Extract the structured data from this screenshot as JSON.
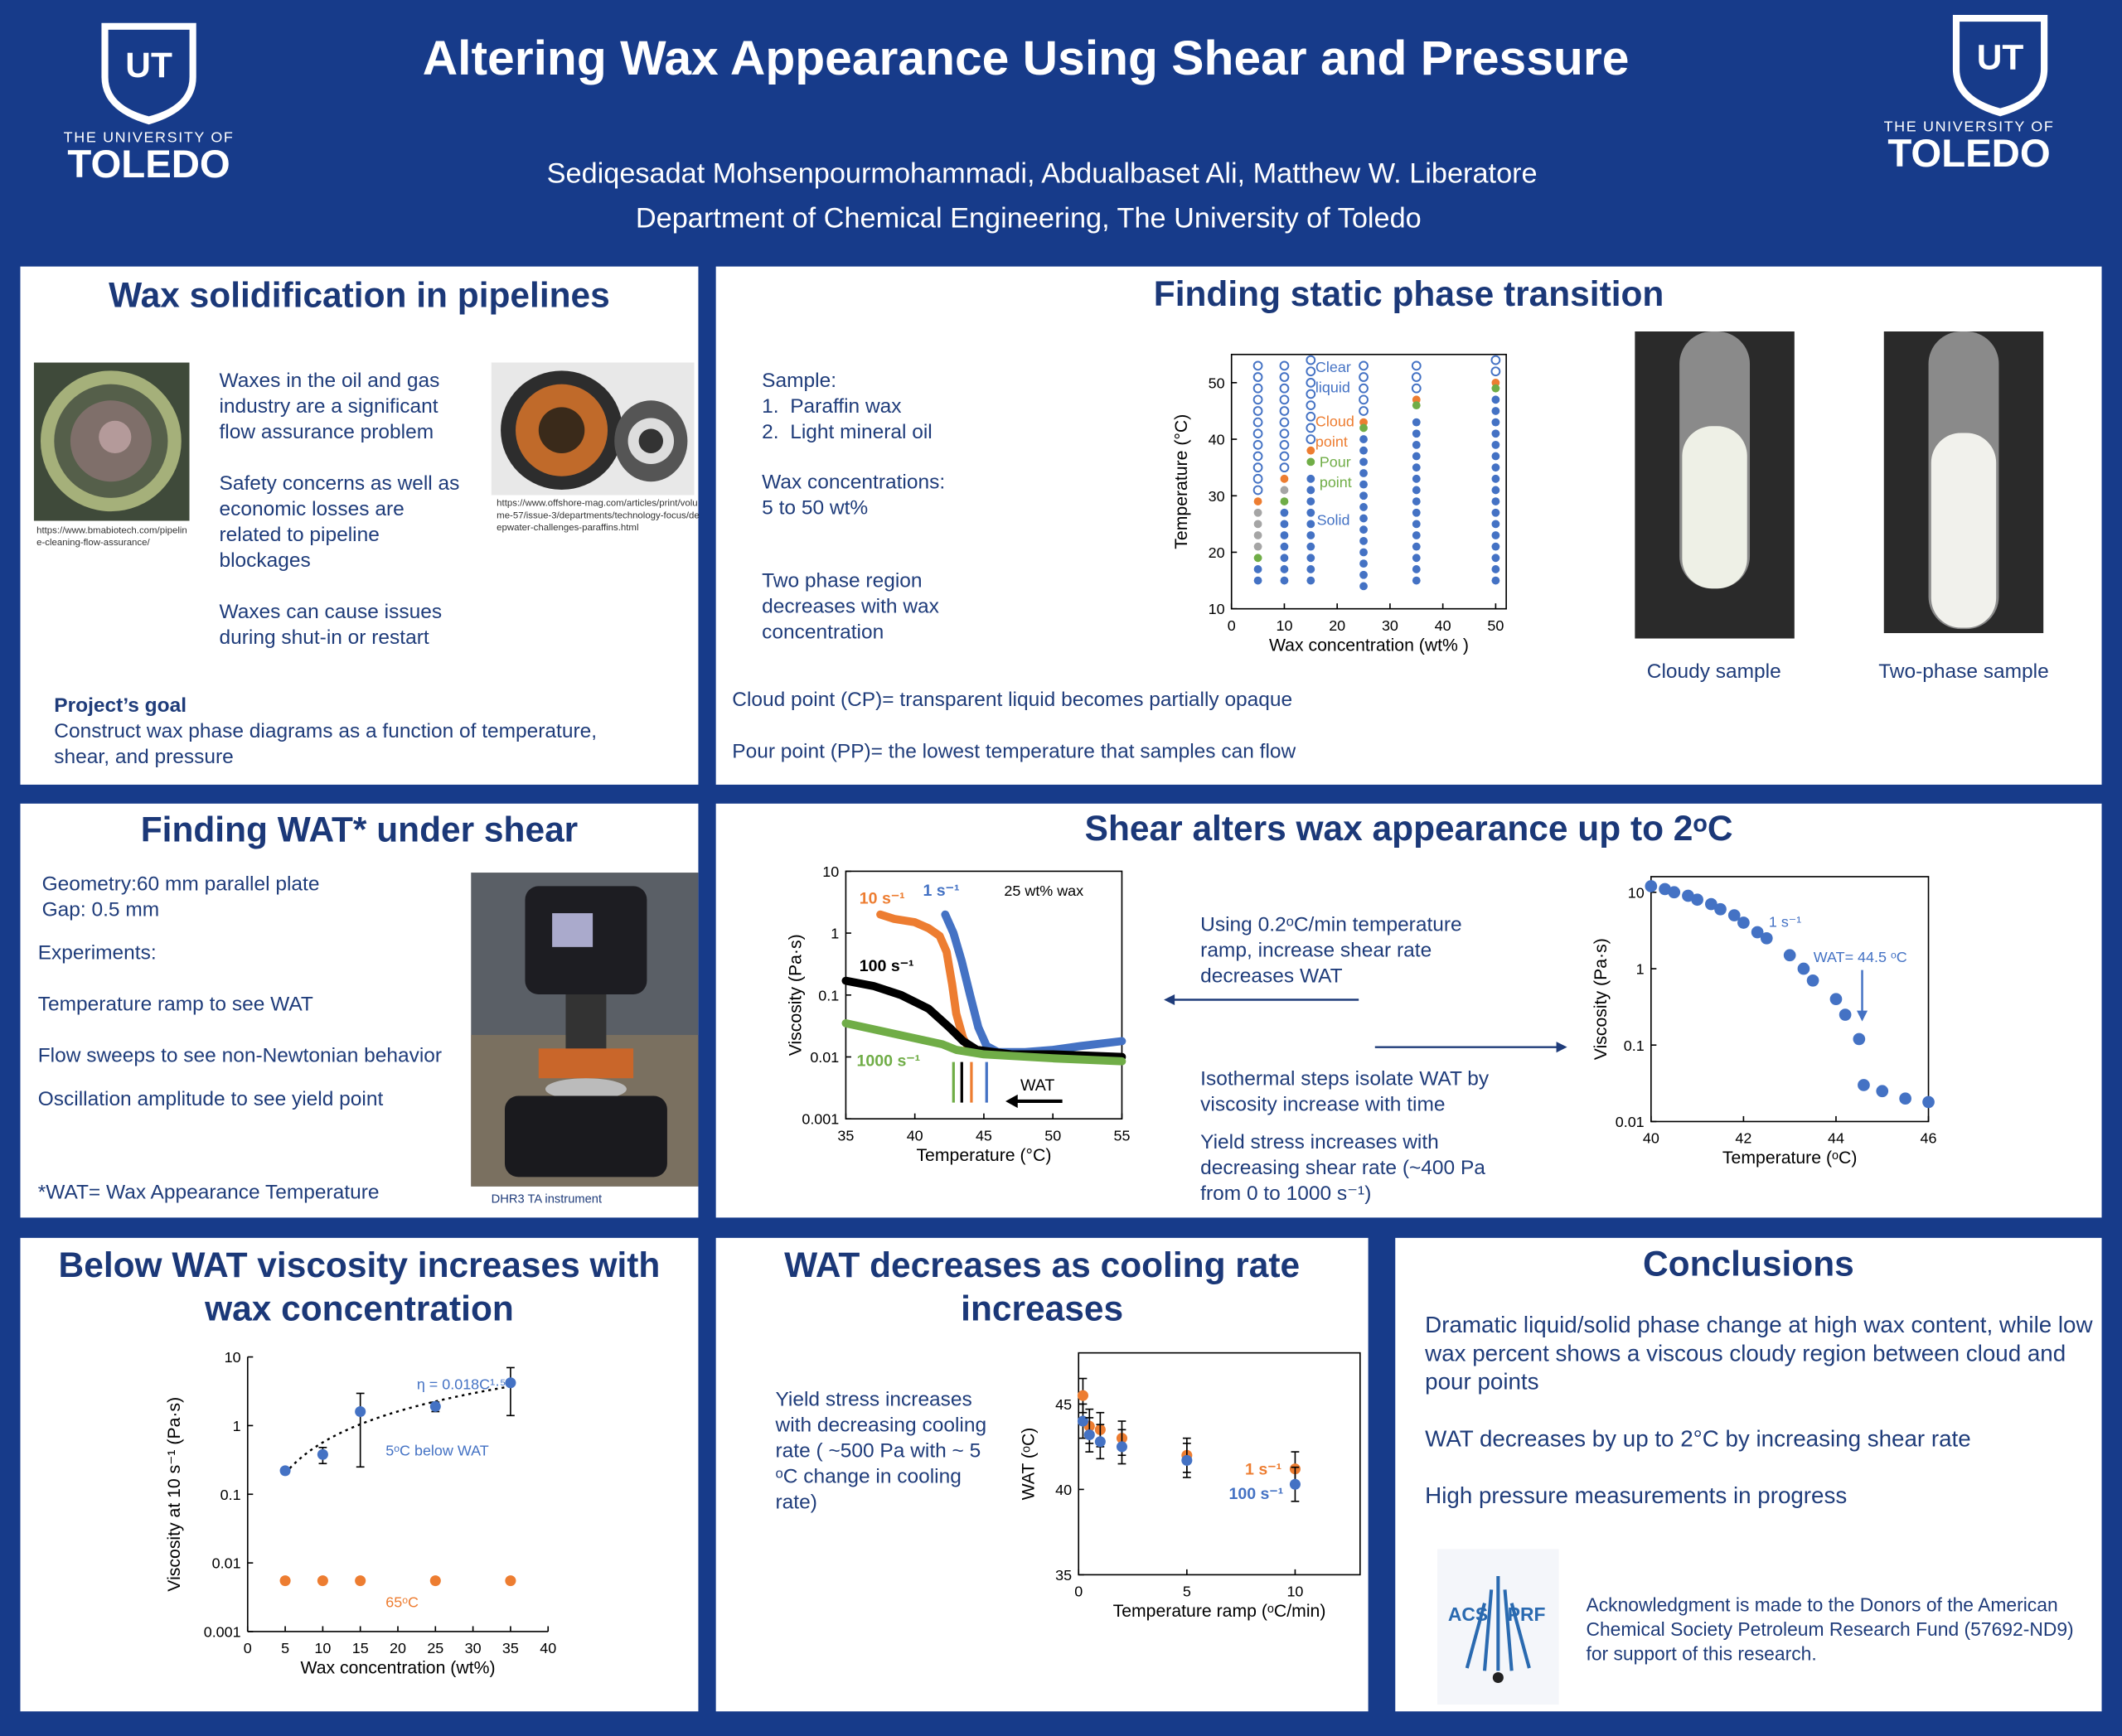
{
  "header": {
    "title": "Altering Wax Appearance Using Shear and Pressure",
    "authors": "Sediqesadat Mohsenpourmohammadi, Abdualbaset Ali, Matthew W. Liberatore",
    "department": "Department of Chemical Engineering, The University of Toledo",
    "logo": {
      "mark": "UT",
      "line1": "THE UNIVERSITY OF",
      "line2": "TOLEDO"
    }
  },
  "sections": {
    "pipelines": {
      "title": "Wax solidification in pipelines",
      "bullets": [
        "Waxes in the oil and gas industry are a significant flow assurance problem",
        "Safety concerns as well as economic losses are related to pipeline blockages",
        "Waxes can cause issues during shut-in or restart"
      ],
      "credits": [
        "https://www.bmabiotech.com/pipeline-cleaning-flow-assurance/",
        "https://www.offshore-mag.com/articles/print/volume-57/issue-3/departments/technology-focus/deepwater-challenges-paraffins.html"
      ],
      "goal_heading": "Project’s goal",
      "goal": "Construct wax phase diagrams as a function of temperature, shear, and pressure"
    },
    "static": {
      "title": "Finding static phase transition",
      "sample_heading": "Sample:",
      "samples": [
        "1.  Paraffin wax",
        "2.  Light mineral oil"
      ],
      "concentration_heading": "Wax concentrations:",
      "concentration": "5 to 50 wt%",
      "note": "Two phase region decreases with wax concentration",
      "captions": [
        "Cloudy sample",
        "Two-phase sample"
      ],
      "definitions": [
        "Cloud point (CP)= transparent liquid becomes partially opaque",
        "Pour point (PP)= the lowest temperature that samples can flow"
      ]
    },
    "shear": {
      "title": "Finding WAT* under shear",
      "setup": [
        "Geometry:60 mm parallel plate",
        "Gap: 0.5 mm"
      ],
      "experiments_heading": "Experiments:",
      "experiments": [
        "Temperature ramp to see WAT",
        "Flow sweeps to see non-Newtonian behavior",
        "Oscillation amplitude to see yield point"
      ],
      "footnote": "*WAT= Wax Appearance Temperature",
      "caption": "DHR3 TA instrument"
    },
    "alters": {
      "title": "Shear alters wax appearance up to 2ᵒC",
      "texts": [
        "Using 0.2ᵒC/min temperature ramp, increase shear rate decreases WAT",
        "Isothermal steps isolate WAT by viscosity increase with time",
        "Yield stress increases with decreasing shear rate (~400 Pa from 0 to 1000 s⁻¹)"
      ]
    },
    "below": {
      "title": "Below WAT viscosity increases with wax concentration"
    },
    "cooling": {
      "title": "WAT decreases as cooling rate increases",
      "text": "Yield stress increases with decreasing cooling rate ( ~500 Pa with ~ 5 ᵒC change in cooling rate)"
    },
    "conclusions": {
      "title": "Conclusions",
      "items": [
        "Dramatic liquid/solid phase change at high wax content, while low wax percent shows a viscous cloudy region between cloud and pour points",
        "WAT decreases by up to 2°C by increasing shear rate",
        "High pressure measurements in progress"
      ],
      "logo": [
        "ACS",
        "PRF"
      ],
      "acknowledgment": "Acknowledgment is made to the Donors of the American Chemical Society Petroleum Research Fund (57692-ND9) for support of this research."
    }
  },
  "chart_data": [
    {
      "type": "scatter",
      "xlabel": "Wax concentration (wt% )",
      "ylabel": "Temperature (°C)",
      "xlim": [
        0,
        52
      ],
      "ylim": [
        10,
        55
      ],
      "xticks": [
        0,
        10,
        20,
        30,
        40,
        50
      ],
      "yticks": [
        10,
        20,
        30,
        40,
        50
      ],
      "series": [
        {
          "name": "Clear liquid",
          "color": "#4472c4",
          "hollow": true,
          "x": [
            5,
            5,
            5,
            5,
            5,
            5,
            5,
            5,
            5,
            5,
            5,
            5,
            10,
            10,
            10,
            10,
            10,
            10,
            10,
            10,
            10,
            10,
            15,
            15,
            15,
            15,
            15,
            15,
            15,
            15,
            25,
            25,
            25,
            25,
            25,
            35,
            35,
            35,
            50,
            50
          ],
          "y": [
            31,
            33,
            35,
            37,
            39,
            41,
            43,
            45,
            47,
            49,
            51,
            53,
            35,
            37,
            39,
            41,
            43,
            45,
            47,
            49,
            51,
            53,
            40,
            42,
            44,
            46,
            48,
            50,
            52,
            54,
            45,
            47,
            49,
            51,
            53,
            49,
            51,
            53,
            52,
            54
          ]
        },
        {
          "name": "Cloud point",
          "color": "#ed7d31",
          "x": [
            5,
            10,
            15,
            25,
            35,
            50
          ],
          "y": [
            29,
            33,
            38,
            43,
            47,
            50
          ]
        },
        {
          "color": "#a5a5a5",
          "x": [
            5,
            5,
            5,
            5,
            10
          ],
          "y": [
            21,
            23,
            25,
            27,
            31
          ]
        },
        {
          "name": "Pour point",
          "color": "#70ad47",
          "x": [
            5,
            10,
            15,
            25,
            35,
            50
          ],
          "y": [
            19,
            29,
            36,
            42,
            46,
            49
          ]
        },
        {
          "name": "Solid",
          "color": "#4472c4",
          "x": [
            5,
            5,
            10,
            10,
            10,
            10,
            10,
            10,
            10,
            15,
            15,
            15,
            15,
            15,
            15,
            15,
            15,
            15,
            15,
            25,
            25,
            25,
            25,
            25,
            25,
            25,
            25,
            25,
            25,
            25,
            25,
            25,
            25,
            35,
            35,
            35,
            35,
            35,
            35,
            35,
            35,
            35,
            35,
            35,
            35,
            35,
            35,
            35,
            50,
            50,
            50,
            50,
            50,
            50,
            50,
            50,
            50,
            50,
            50,
            50,
            50,
            50,
            50,
            50,
            50
          ],
          "y": [
            15,
            17,
            15,
            17,
            19,
            21,
            23,
            25,
            27,
            15,
            17,
            19,
            21,
            23,
            25,
            27,
            29,
            31,
            33,
            14,
            16,
            18,
            20,
            22,
            24,
            26,
            28,
            30,
            32,
            34,
            36,
            38,
            40,
            15,
            17,
            19,
            21,
            23,
            25,
            27,
            29,
            31,
            33,
            35,
            37,
            39,
            41,
            43,
            15,
            17,
            19,
            21,
            23,
            25,
            27,
            29,
            31,
            33,
            35,
            37,
            39,
            41,
            43,
            45,
            47
          ]
        }
      ]
    },
    {
      "type": "line",
      "xlabel": "Temperature (°C)",
      "ylabel": "Viscosity (Pa·s)",
      "ylog": true,
      "xlim": [
        35,
        55
      ],
      "ylim": [
        0.001,
        10
      ],
      "xticks": [
        35,
        40,
        45,
        50,
        55
      ],
      "yticks": [
        10,
        1,
        0.1,
        0.01,
        0.001
      ],
      "annotations": [
        "25 wt% wax",
        "WAT"
      ],
      "series": [
        {
          "name": "10 s⁻¹",
          "color": "#ed7d31",
          "x": [
            37.5,
            38.5,
            40,
            41,
            41.8,
            42.3,
            42.7,
            43,
            43.5,
            44
          ],
          "y": [
            2,
            1.7,
            1.5,
            1.2,
            0.9,
            0.5,
            0.15,
            0.05,
            0.02,
            0.013
          ]
        },
        {
          "name": "1 s⁻¹",
          "color": "#4472c4",
          "x": [
            42.2,
            42.8,
            43.4,
            44,
            44.6,
            45.2,
            46,
            48,
            50,
            52,
            55
          ],
          "y": [
            2,
            1,
            0.35,
            0.1,
            0.03,
            0.015,
            0.012,
            0.012,
            0.013,
            0.015,
            0.018
          ]
        },
        {
          "name": "100 s⁻¹",
          "color": "#000000",
          "x": [
            35,
            37,
            39,
            41,
            42.5,
            43.5,
            44.5,
            47,
            50,
            55
          ],
          "y": [
            0.17,
            0.14,
            0.1,
            0.06,
            0.03,
            0.018,
            0.013,
            0.011,
            0.011,
            0.01
          ]
        },
        {
          "name": "1000 s⁻¹",
          "color": "#70ad47",
          "x": [
            35,
            37,
            40,
            42,
            43,
            45,
            50,
            55
          ],
          "y": [
            0.035,
            0.028,
            0.02,
            0.016,
            0.013,
            0.011,
            0.0095,
            0.0085
          ]
        }
      ],
      "wat_markers": {
        "x": [
          42.8,
          43.4,
          44.1,
          45.2
        ],
        "colors": [
          "#70ad47",
          "#000000",
          "#ed7d31",
          "#4472c4"
        ]
      }
    },
    {
      "type": "scatter",
      "xlabel": "Temperature (ᵒC)",
      "ylabel": "Viscosity (Pa·s)",
      "ylog": true,
      "xlim": [
        40,
        46
      ],
      "ylim": [
        0.01,
        16
      ],
      "xticks": [
        40,
        42,
        44,
        46
      ],
      "yticks": [
        10,
        1,
        0.1,
        0.01
      ],
      "annotations": [
        "WAT= 44.5 ᵒC"
      ],
      "series": [
        {
          "name": "1 s⁻¹",
          "color": "#4472c4",
          "x": [
            40,
            40.3,
            40.5,
            40.8,
            41,
            41.3,
            41.5,
            41.8,
            42,
            42.3,
            42.5,
            43,
            43.3,
            43.5,
            44,
            44.2,
            44.5,
            44.6,
            45,
            45.5,
            46
          ],
          "y": [
            12,
            11,
            10,
            9,
            8,
            7,
            6,
            5,
            4,
            3,
            2.5,
            1.5,
            1,
            0.7,
            0.4,
            0.25,
            0.12,
            0.03,
            0.025,
            0.02,
            0.018
          ]
        }
      ]
    },
    {
      "type": "scatter",
      "xlabel": "Wax concentration (wt%)",
      "ylabel": "Viscosity at 10 s⁻¹ (Pa·s)",
      "ylog": true,
      "xlim": [
        0,
        40
      ],
      "ylim": [
        0.001,
        10
      ],
      "xticks": [
        0,
        5,
        10,
        15,
        20,
        25,
        30,
        35,
        40
      ],
      "yticks": [
        10,
        1,
        0.1,
        0.01,
        0.001
      ],
      "fit": {
        "coefficient": 0.018,
        "exponent": 1.5,
        "label": "η = 0.018C¹·⁵"
      },
      "series": [
        {
          "name": "5ᵒC below WAT",
          "color": "#4472c4",
          "x": [
            5,
            10,
            15,
            25,
            35
          ],
          "y": [
            0.22,
            0.38,
            1.6,
            1.9,
            4.2
          ],
          "errors": [
            0.02,
            0.1,
            1.35,
            0.3,
            2.8
          ]
        },
        {
          "name": "65ᵒC",
          "color": "#ed7d31",
          "x": [
            5,
            10,
            15,
            25,
            35
          ],
          "y": [
            0.0055,
            0.0055,
            0.0055,
            0.0055,
            0.0055
          ]
        }
      ]
    },
    {
      "type": "scatter",
      "xlabel": "Temperature ramp (ᵒC/min)",
      "ylabel": "WAT (ᵒC)",
      "xlim": [
        0,
        13
      ],
      "ylim": [
        35,
        48
      ],
      "xticks": [
        0,
        5,
        10
      ],
      "yticks": [
        35,
        40,
        45
      ],
      "series": [
        {
          "name": "1 s⁻¹",
          "color": "#ed7d31",
          "x": [
            0.2,
            0.5,
            1,
            2,
            5,
            10
          ],
          "y": [
            45.5,
            43.7,
            43.5,
            43,
            42,
            41.2
          ],
          "errors": [
            1,
            1,
            1,
            1,
            1,
            1
          ]
        },
        {
          "name": "100 s⁻¹",
          "color": "#4472c4",
          "x": [
            0.2,
            0.5,
            1,
            2,
            5,
            10
          ],
          "y": [
            44,
            43.2,
            42.8,
            42.5,
            41.7,
            40.3
          ],
          "errors": [
            1,
            1,
            1,
            1,
            1,
            1
          ]
        }
      ]
    }
  ]
}
